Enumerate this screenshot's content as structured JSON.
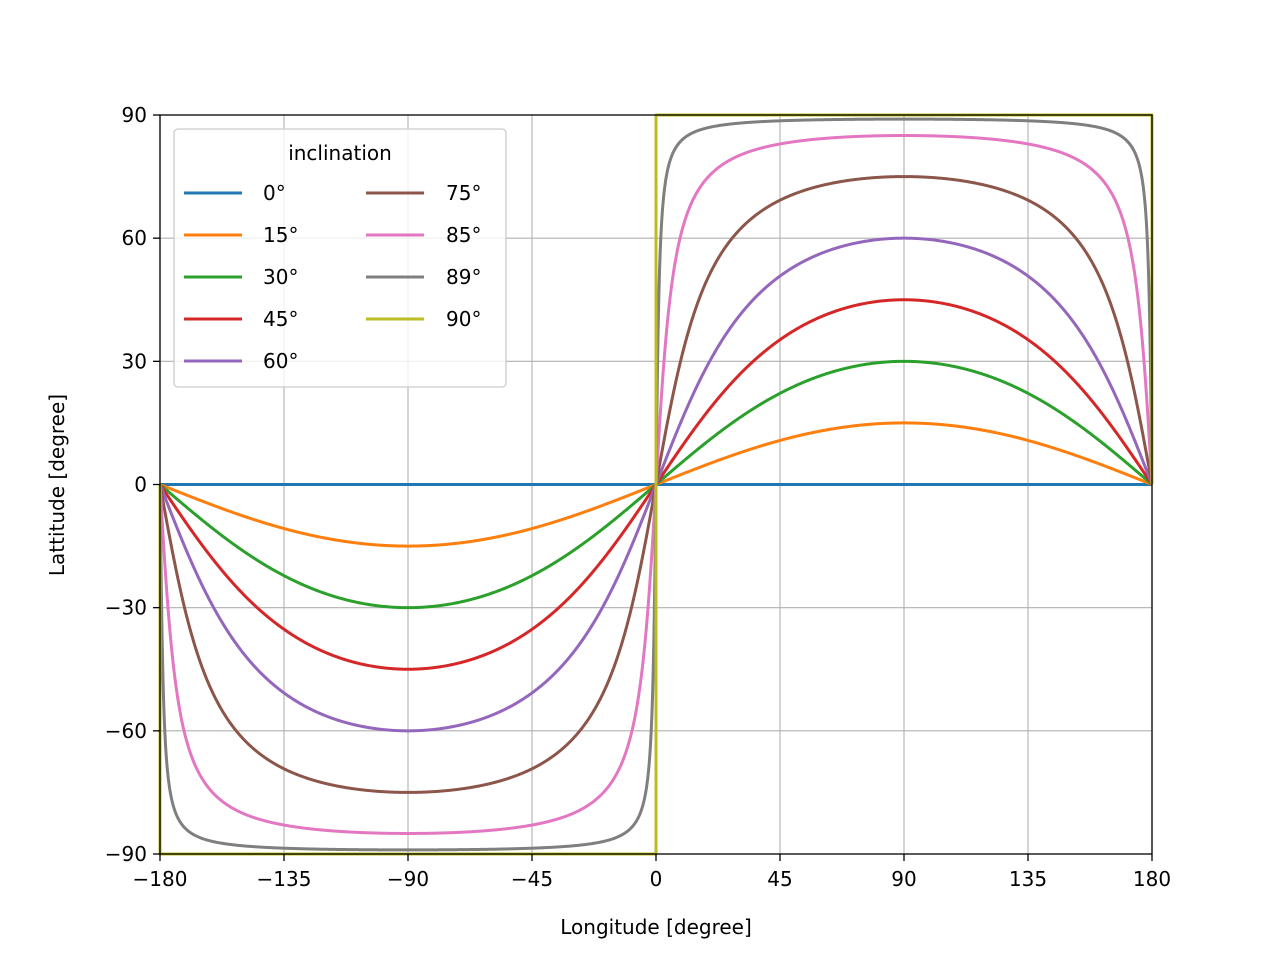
{
  "chart_data": {
    "type": "line",
    "title": "",
    "xlabel": "Longitude [degree]",
    "ylabel": "Lattitude [degree]",
    "xlim": [
      -180,
      180
    ],
    "ylim": [
      -90,
      90
    ],
    "xticks": [
      -180,
      -135,
      -90,
      -45,
      0,
      45,
      90,
      135,
      180
    ],
    "yticks": [
      -90,
      -60,
      -30,
      0,
      30,
      60,
      90
    ],
    "xtick_labels": [
      "−180",
      "−135",
      "−90",
      "−45",
      "0",
      "45",
      "90",
      "135",
      "180"
    ],
    "ytick_labels": [
      "−90",
      "−60",
      "−30",
      "0",
      "30",
      "60",
      "90"
    ],
    "grid": true,
    "legend": {
      "title": "inclination",
      "placement": "top-left",
      "columns": 2
    },
    "series": [
      {
        "name": "0°",
        "inclination": 0,
        "color": "#1f77b4"
      },
      {
        "name": "15°",
        "inclination": 15,
        "color": "#ff7f0e"
      },
      {
        "name": "30°",
        "inclination": 30,
        "color": "#2ca02c"
      },
      {
        "name": "45°",
        "inclination": 45,
        "color": "#d62728"
      },
      {
        "name": "60°",
        "inclination": 60,
        "color": "#9467bd"
      },
      {
        "name": "75°",
        "inclination": 75,
        "color": "#8c564b"
      },
      {
        "name": "85°",
        "inclination": 85,
        "color": "#e377c2"
      },
      {
        "name": "89°",
        "inclination": 89,
        "color": "#7f7f7f"
      },
      {
        "name": "90°",
        "inclination": 90,
        "color": "#bcbd22"
      }
    ]
  }
}
